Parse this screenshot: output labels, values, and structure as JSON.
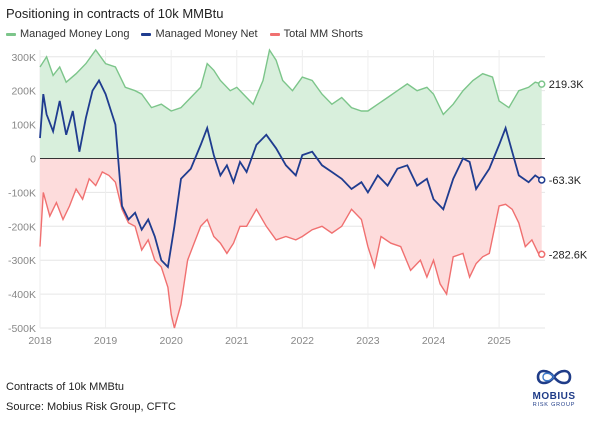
{
  "header": {
    "title": "Positioning in contracts of 10k MMBtu"
  },
  "footer": {
    "units": "Contracts of 10k MMBtu",
    "source": "Source: Mobius Risk Group, CFTC"
  },
  "logo": {
    "name": "MOBIUS",
    "sub": "RISK GROUP"
  },
  "colors": {
    "long_line": "#7cc58a",
    "long_fill": "#d8efdc",
    "net_line": "#1f3c8f",
    "short_line": "#f07070",
    "short_fill": "#fddcdc"
  },
  "chart_data": {
    "type": "line",
    "title": "Positioning in contracts of 10k MMBtu",
    "xlabel": "",
    "ylabel": "",
    "x_ticks": [
      "2018",
      "2019",
      "2020",
      "2021",
      "2022",
      "2023",
      "2024",
      "2025"
    ],
    "y_ticks": [
      "300K",
      "200K",
      "100K",
      "0",
      "-100K",
      "-200K",
      "-300K",
      "-400K",
      "-500K"
    ],
    "ylim": [
      -500000,
      320000
    ],
    "grid": true,
    "legend": "top-left",
    "series": [
      {
        "name": "Managed Money Long",
        "end_label": "219.3K",
        "points": [
          [
            2018.0,
            270000
          ],
          [
            2018.1,
            300000
          ],
          [
            2018.2,
            245000
          ],
          [
            2018.3,
            270000
          ],
          [
            2018.4,
            225000
          ],
          [
            2018.55,
            250000
          ],
          [
            2018.7,
            280000
          ],
          [
            2018.85,
            320000
          ],
          [
            2019.0,
            280000
          ],
          [
            2019.15,
            270000
          ],
          [
            2019.3,
            210000
          ],
          [
            2019.45,
            200000
          ],
          [
            2019.55,
            190000
          ],
          [
            2019.7,
            150000
          ],
          [
            2019.85,
            160000
          ],
          [
            2020.0,
            140000
          ],
          [
            2020.15,
            150000
          ],
          [
            2020.3,
            180000
          ],
          [
            2020.45,
            210000
          ],
          [
            2020.55,
            280000
          ],
          [
            2020.65,
            260000
          ],
          [
            2020.75,
            230000
          ],
          [
            2020.9,
            200000
          ],
          [
            2021.0,
            210000
          ],
          [
            2021.1,
            190000
          ],
          [
            2021.25,
            160000
          ],
          [
            2021.4,
            230000
          ],
          [
            2021.5,
            320000
          ],
          [
            2021.6,
            290000
          ],
          [
            2021.7,
            230000
          ],
          [
            2021.85,
            200000
          ],
          [
            2022.0,
            240000
          ],
          [
            2022.15,
            230000
          ],
          [
            2022.3,
            190000
          ],
          [
            2022.45,
            160000
          ],
          [
            2022.6,
            180000
          ],
          [
            2022.75,
            150000
          ],
          [
            2022.9,
            140000
          ],
          [
            2023.0,
            140000
          ],
          [
            2023.15,
            160000
          ],
          [
            2023.3,
            180000
          ],
          [
            2023.45,
            200000
          ],
          [
            2023.6,
            220000
          ],
          [
            2023.75,
            200000
          ],
          [
            2023.9,
            210000
          ],
          [
            2024.0,
            190000
          ],
          [
            2024.15,
            130000
          ],
          [
            2024.3,
            160000
          ],
          [
            2024.45,
            200000
          ],
          [
            2024.6,
            230000
          ],
          [
            2024.75,
            250000
          ],
          [
            2024.9,
            240000
          ],
          [
            2025.0,
            170000
          ],
          [
            2025.15,
            150000
          ],
          [
            2025.3,
            200000
          ],
          [
            2025.45,
            210000
          ],
          [
            2025.55,
            225000
          ],
          [
            2025.65,
            219300
          ]
        ]
      },
      {
        "name": "Managed Money Net",
        "end_label": "-63.3K",
        "points": [
          [
            2018.0,
            60000
          ],
          [
            2018.05,
            190000
          ],
          [
            2018.1,
            130000
          ],
          [
            2018.2,
            80000
          ],
          [
            2018.3,
            170000
          ],
          [
            2018.4,
            70000
          ],
          [
            2018.5,
            140000
          ],
          [
            2018.6,
            20000
          ],
          [
            2018.7,
            120000
          ],
          [
            2018.8,
            200000
          ],
          [
            2018.9,
            230000
          ],
          [
            2019.0,
            190000
          ],
          [
            2019.1,
            130000
          ],
          [
            2019.15,
            100000
          ],
          [
            2019.25,
            -140000
          ],
          [
            2019.35,
            -180000
          ],
          [
            2019.45,
            -160000
          ],
          [
            2019.55,
            -210000
          ],
          [
            2019.65,
            -180000
          ],
          [
            2019.75,
            -230000
          ],
          [
            2019.85,
            -300000
          ],
          [
            2019.95,
            -320000
          ],
          [
            2020.05,
            -200000
          ],
          [
            2020.15,
            -60000
          ],
          [
            2020.3,
            -30000
          ],
          [
            2020.45,
            40000
          ],
          [
            2020.55,
            90000
          ],
          [
            2020.65,
            10000
          ],
          [
            2020.75,
            -50000
          ],
          [
            2020.85,
            -20000
          ],
          [
            2020.95,
            -70000
          ],
          [
            2021.05,
            -10000
          ],
          [
            2021.15,
            -40000
          ],
          [
            2021.3,
            40000
          ],
          [
            2021.45,
            70000
          ],
          [
            2021.6,
            30000
          ],
          [
            2021.75,
            -20000
          ],
          [
            2021.9,
            -50000
          ],
          [
            2022.0,
            10000
          ],
          [
            2022.15,
            20000
          ],
          [
            2022.3,
            -20000
          ],
          [
            2022.45,
            -40000
          ],
          [
            2022.6,
            -60000
          ],
          [
            2022.75,
            -90000
          ],
          [
            2022.9,
            -70000
          ],
          [
            2023.0,
            -100000
          ],
          [
            2023.15,
            -50000
          ],
          [
            2023.3,
            -80000
          ],
          [
            2023.45,
            -30000
          ],
          [
            2023.6,
            -20000
          ],
          [
            2023.75,
            -80000
          ],
          [
            2023.9,
            -60000
          ],
          [
            2024.0,
            -120000
          ],
          [
            2024.15,
            -150000
          ],
          [
            2024.3,
            -60000
          ],
          [
            2024.45,
            0
          ],
          [
            2024.55,
            -10000
          ],
          [
            2024.65,
            -90000
          ],
          [
            2024.75,
            -60000
          ],
          [
            2024.85,
            -30000
          ],
          [
            2025.0,
            40000
          ],
          [
            2025.1,
            90000
          ],
          [
            2025.2,
            20000
          ],
          [
            2025.3,
            -50000
          ],
          [
            2025.45,
            -70000
          ],
          [
            2025.55,
            -50000
          ],
          [
            2025.65,
            -63300
          ]
        ]
      },
      {
        "name": "Total MM Shorts",
        "end_label": "-282.6K",
        "points": [
          [
            2018.0,
            -260000
          ],
          [
            2018.05,
            -100000
          ],
          [
            2018.15,
            -170000
          ],
          [
            2018.25,
            -130000
          ],
          [
            2018.35,
            -180000
          ],
          [
            2018.45,
            -140000
          ],
          [
            2018.55,
            -90000
          ],
          [
            2018.65,
            -120000
          ],
          [
            2018.75,
            -60000
          ],
          [
            2018.85,
            -80000
          ],
          [
            2018.95,
            -40000
          ],
          [
            2019.05,
            -50000
          ],
          [
            2019.15,
            -70000
          ],
          [
            2019.25,
            -150000
          ],
          [
            2019.35,
            -190000
          ],
          [
            2019.45,
            -200000
          ],
          [
            2019.55,
            -270000
          ],
          [
            2019.65,
            -240000
          ],
          [
            2019.75,
            -300000
          ],
          [
            2019.85,
            -320000
          ],
          [
            2019.95,
            -380000
          ],
          [
            2020.0,
            -460000
          ],
          [
            2020.05,
            -500000
          ],
          [
            2020.15,
            -430000
          ],
          [
            2020.25,
            -300000
          ],
          [
            2020.35,
            -250000
          ],
          [
            2020.45,
            -200000
          ],
          [
            2020.55,
            -180000
          ],
          [
            2020.65,
            -230000
          ],
          [
            2020.75,
            -250000
          ],
          [
            2020.85,
            -280000
          ],
          [
            2020.95,
            -250000
          ],
          [
            2021.05,
            -200000
          ],
          [
            2021.15,
            -200000
          ],
          [
            2021.3,
            -150000
          ],
          [
            2021.45,
            -200000
          ],
          [
            2021.6,
            -240000
          ],
          [
            2021.75,
            -230000
          ],
          [
            2021.9,
            -240000
          ],
          [
            2022.0,
            -230000
          ],
          [
            2022.15,
            -210000
          ],
          [
            2022.3,
            -200000
          ],
          [
            2022.45,
            -220000
          ],
          [
            2022.6,
            -200000
          ],
          [
            2022.75,
            -150000
          ],
          [
            2022.9,
            -180000
          ],
          [
            2023.0,
            -260000
          ],
          [
            2023.1,
            -320000
          ],
          [
            2023.2,
            -230000
          ],
          [
            2023.35,
            -250000
          ],
          [
            2023.5,
            -260000
          ],
          [
            2023.65,
            -330000
          ],
          [
            2023.8,
            -300000
          ],
          [
            2023.9,
            -350000
          ],
          [
            2024.0,
            -300000
          ],
          [
            2024.1,
            -370000
          ],
          [
            2024.2,
            -400000
          ],
          [
            2024.3,
            -290000
          ],
          [
            2024.45,
            -280000
          ],
          [
            2024.55,
            -350000
          ],
          [
            2024.65,
            -310000
          ],
          [
            2024.75,
            -290000
          ],
          [
            2024.85,
            -280000
          ],
          [
            2025.0,
            -140000
          ],
          [
            2025.1,
            -135000
          ],
          [
            2025.2,
            -150000
          ],
          [
            2025.3,
            -190000
          ],
          [
            2025.4,
            -260000
          ],
          [
            2025.5,
            -240000
          ],
          [
            2025.6,
            -280000
          ],
          [
            2025.65,
            -282600
          ]
        ]
      }
    ]
  }
}
